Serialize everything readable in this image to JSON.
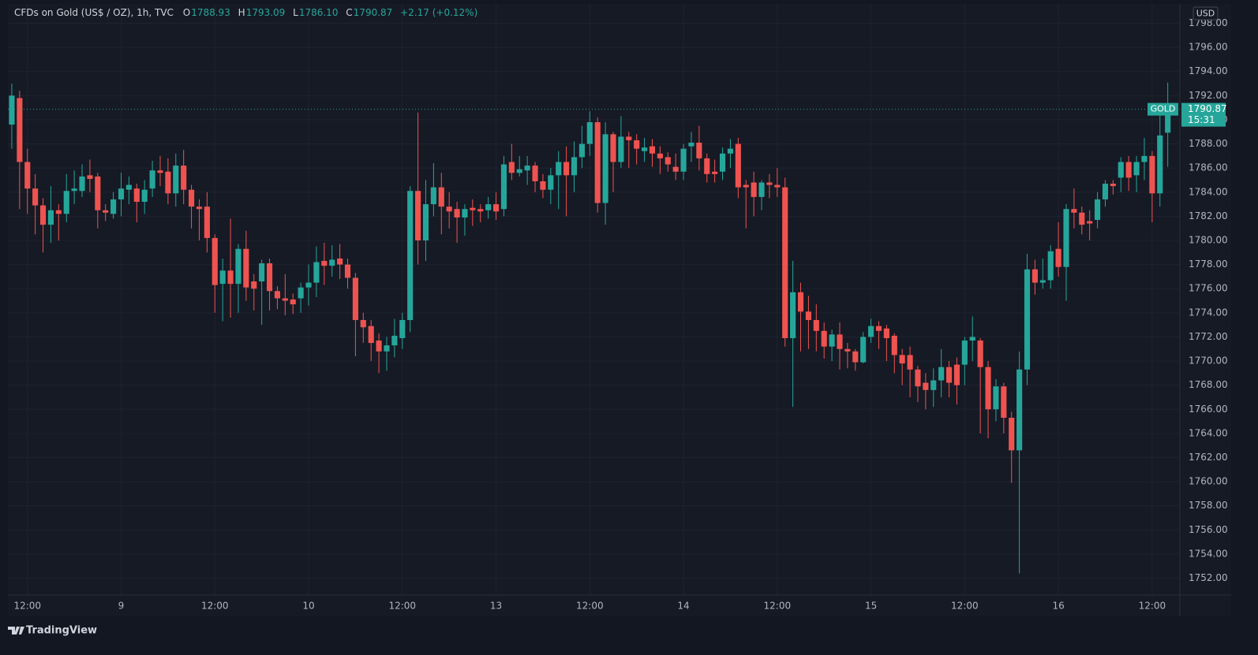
{
  "header": {
    "title": "CFDs on Gold (US$ / OZ), 1h, TVC",
    "ohlc": [
      {
        "key": "O",
        "value": "1788.93"
      },
      {
        "key": "H",
        "value": "1793.09"
      },
      {
        "key": "L",
        "value": "1786.10"
      },
      {
        "key": "C",
        "value": "1790.87"
      }
    ],
    "change": "+2.17 (+0.12%)"
  },
  "footer": {
    "brand": "TradingView"
  },
  "chart_data": {
    "type": "candlestick",
    "symbol": "GOLD",
    "currency": "USD",
    "countdown": "15:31",
    "up_color": "#26a69a",
    "down_color": "#ef5350",
    "grid": true,
    "open": [
      1789.6,
      1791.8,
      1786.5,
      1784.3,
      1782.9,
      1781.3,
      1782.5,
      1782.2,
      1784.1,
      1784.1,
      1785.4,
      1785.3,
      1782.5,
      1782.2,
      1783.4,
      1784.2,
      1784.3,
      1783.2,
      1784.3,
      1785.8,
      1785.7,
      1783.9,
      1786.2,
      1784.2,
      1782.8,
      1782.8,
      1780.2,
      1776.4,
      1777.5,
      1776.4,
      1779.3,
      1776.6,
      1776.6,
      1778.1,
      1775.8,
      1775.2,
      1775.1,
      1775.2,
      1776.1,
      1776.5,
      1778.3,
      1777.9,
      1778.5,
      1778.0,
      1776.9,
      1773.4,
      1772.9,
      1771.7,
      1770.8,
      1771.3,
      1771.9,
      1773.4,
      1784.1,
      1780.0,
      1783.0,
      1784.4,
      1782.8,
      1782.6,
      1781.9,
      1782.7,
      1782.6,
      1782.5,
      1783.0,
      1782.6,
      1786.5,
      1785.6,
      1785.8,
      1786.2,
      1784.9,
      1784.2,
      1785.4,
      1786.5,
      1785.4,
      1786.9,
      1788.0,
      1789.8,
      1783.1,
      1788.8,
      1786.5,
      1788.6,
      1788.3,
      1787.4,
      1787.8,
      1787.2,
      1786.9,
      1786.1,
      1785.7,
      1787.8,
      1788.1,
      1786.8,
      1785.7,
      1785.7,
      1787.2,
      1788.0,
      1784.6,
      1784.8,
      1783.6,
      1784.8,
      1784.6,
      1784.4,
      1771.9,
      1775.7,
      1774.1,
      1773.4,
      1772.5,
      1771.2,
      1772.2,
      1771.0,
      1770.8,
      1769.9,
      1772.0,
      1772.9,
      1772.7,
      1772.1,
      1770.5,
      1770.5,
      1769.3,
      1768.2,
      1767.6,
      1768.4,
      1769.5,
      1769.7,
      1769.7,
      1771.7,
      1771.7,
      1769.5,
      1766.0,
      1767.9,
      1765.3,
      1762.6,
      1769.3,
      1777.6,
      1776.5,
      1776.7,
      1779.3,
      1777.8,
      1782.6,
      1782.3,
      1781.6,
      1781.7,
      1783.4,
      1784.7,
      1785.2,
      1786.5,
      1785.4,
      1786.5,
      1787.0,
      1783.9,
      1788.93
    ],
    "high": [
      1793.0,
      1792.4,
      1787.6,
      1785.5,
      1783.5,
      1784.5,
      1783.0,
      1785.5,
      1785.8,
      1786.3,
      1786.7,
      1785.6,
      1783.0,
      1784.0,
      1785.6,
      1785.3,
      1784.7,
      1785.0,
      1786.6,
      1787.0,
      1786.8,
      1787.2,
      1787.5,
      1784.6,
      1783.4,
      1784.0,
      1780.5,
      1778.5,
      1781.8,
      1779.7,
      1780.8,
      1777.2,
      1778.4,
      1778.5,
      1776.2,
      1777.2,
      1775.6,
      1776.5,
      1778.0,
      1779.5,
      1779.8,
      1779.6,
      1779.7,
      1778.5,
      1777.3,
      1774.0,
      1773.4,
      1772.3,
      1772.0,
      1773.5,
      1774.0,
      1784.5,
      1790.6,
      1785.0,
      1786.4,
      1785.6,
      1784.0,
      1783.2,
      1783.0,
      1783.4,
      1783.0,
      1783.6,
      1784.0,
      1787.0,
      1788.0,
      1787.0,
      1787.0,
      1786.5,
      1785.5,
      1786.0,
      1787.4,
      1787.8,
      1788.2,
      1789.5,
      1790.7,
      1790.2,
      1789.8,
      1789.0,
      1790.3,
      1789.0,
      1788.8,
      1788.5,
      1788.4,
      1787.8,
      1787.3,
      1787.2,
      1788.0,
      1789.0,
      1789.5,
      1787.2,
      1786.7,
      1787.7,
      1788.4,
      1788.5,
      1785.0,
      1785.7,
      1785.0,
      1785.5,
      1786.0,
      1785.2,
      1778.3,
      1776.5,
      1775.4,
      1774.7,
      1773.2,
      1772.6,
      1773.2,
      1771.5,
      1771.0,
      1772.4,
      1773.5,
      1773.3,
      1773.0,
      1772.3,
      1771.0,
      1771.2,
      1769.6,
      1769.0,
      1769.4,
      1771.0,
      1770.0,
      1770.3,
      1772.0,
      1773.7,
      1771.9,
      1770.0,
      1768.5,
      1768.2,
      1765.8,
      1770.8,
      1778.9,
      1778.4,
      1778.5,
      1779.6,
      1781.5,
      1783.0,
      1784.3,
      1782.8,
      1782.5,
      1784.0,
      1785.0,
      1785.0,
      1786.9,
      1787.0,
      1787.0,
      1788.5,
      1787.4,
      1790.4,
      1793.09
    ],
    "low": [
      1787.6,
      1782.6,
      1782.2,
      1780.5,
      1779.0,
      1779.8,
      1780.0,
      1781.5,
      1783.0,
      1783.6,
      1784.0,
      1781.0,
      1781.6,
      1781.8,
      1782.0,
      1783.0,
      1781.5,
      1782.2,
      1783.6,
      1784.5,
      1783.0,
      1782.8,
      1783.0,
      1781.0,
      1780.0,
      1779.0,
      1774.0,
      1773.3,
      1773.6,
      1774.0,
      1775.0,
      1774.2,
      1773.0,
      1774.2,
      1774.3,
      1773.8,
      1773.9,
      1774.0,
      1774.6,
      1775.3,
      1776.3,
      1777.0,
      1776.8,
      1776.0,
      1770.4,
      1771.5,
      1770.0,
      1769.0,
      1769.2,
      1770.3,
      1771.0,
      1772.4,
      1778.0,
      1778.3,
      1782.0,
      1780.5,
      1781.0,
      1779.8,
      1780.4,
      1781.2,
      1781.5,
      1781.8,
      1781.7,
      1782.0,
      1785.0,
      1785.3,
      1784.6,
      1784.0,
      1783.5,
      1783.0,
      1782.6,
      1782.0,
      1784.0,
      1786.0,
      1787.0,
      1782.3,
      1781.3,
      1784.0,
      1786.0,
      1786.0,
      1786.3,
      1786.5,
      1786.1,
      1785.5,
      1785.7,
      1785.0,
      1785.0,
      1786.5,
      1785.8,
      1784.8,
      1784.8,
      1785.0,
      1786.0,
      1783.5,
      1781.0,
      1782.0,
      1782.5,
      1783.5,
      1783.6,
      1771.2,
      1766.2,
      1770.8,
      1771.0,
      1770.8,
      1770.2,
      1770.0,
      1769.3,
      1769.4,
      1769.2,
      1769.8,
      1771.5,
      1771.0,
      1770.0,
      1769.0,
      1768.0,
      1767.0,
      1766.6,
      1766.0,
      1766.2,
      1767.0,
      1767.0,
      1766.4,
      1768.0,
      1770.0,
      1764.0,
      1763.6,
      1765.0,
      1764.0,
      1759.9,
      1752.4,
      1768.0,
      1775.5,
      1776.0,
      1776.0,
      1777.0,
      1775.0,
      1781.0,
      1780.5,
      1780.0,
      1781.0,
      1782.8,
      1783.8,
      1784.0,
      1784.1,
      1784.0,
      1785.0,
      1781.5,
      1782.8,
      1786.1
    ],
    "close": [
      1792.0,
      1786.5,
      1784.3,
      1782.9,
      1781.3,
      1782.5,
      1782.2,
      1784.1,
      1784.3,
      1785.3,
      1785.1,
      1782.5,
      1782.3,
      1783.4,
      1784.3,
      1784.6,
      1783.2,
      1784.2,
      1785.8,
      1785.6,
      1783.9,
      1786.2,
      1784.2,
      1782.8,
      1782.6,
      1780.2,
      1776.3,
      1777.5,
      1776.4,
      1779.3,
      1776.1,
      1776.0,
      1778.1,
      1775.8,
      1775.2,
      1775.0,
      1774.7,
      1776.1,
      1776.5,
      1778.2,
      1777.9,
      1778.4,
      1778.0,
      1776.9,
      1773.4,
      1772.8,
      1771.5,
      1770.8,
      1771.3,
      1772.1,
      1773.4,
      1784.1,
      1780.0,
      1783.0,
      1784.4,
      1782.8,
      1782.4,
      1781.9,
      1782.6,
      1782.5,
      1782.4,
      1783.0,
      1782.4,
      1786.3,
      1785.6,
      1785.9,
      1786.2,
      1784.9,
      1784.2,
      1785.4,
      1786.5,
      1785.4,
      1786.9,
      1788.0,
      1789.8,
      1783.1,
      1788.8,
      1786.5,
      1788.6,
      1788.3,
      1787.6,
      1787.7,
      1787.2,
      1786.8,
      1786.3,
      1785.7,
      1787.6,
      1788.1,
      1786.8,
      1785.5,
      1785.5,
      1787.2,
      1787.6,
      1784.4,
      1784.4,
      1783.6,
      1784.8,
      1784.6,
      1784.4,
      1771.9,
      1775.7,
      1774.1,
      1773.4,
      1772.5,
      1771.2,
      1772.2,
      1771.0,
      1770.8,
      1769.9,
      1772.0,
      1772.9,
      1772.5,
      1771.9,
      1770.5,
      1769.8,
      1769.3,
      1767.9,
      1767.6,
      1768.4,
      1769.5,
      1768.2,
      1768.0,
      1771.7,
      1772.0,
      1769.5,
      1766.0,
      1767.9,
      1765.3,
      1762.6,
      1769.3,
      1777.6,
      1776.5,
      1776.7,
      1779.1,
      1777.8,
      1782.6,
      1782.3,
      1781.3,
      1781.4,
      1783.4,
      1784.7,
      1784.5,
      1786.5,
      1785.2,
      1786.5,
      1787.0,
      1783.9,
      1788.7,
      1790.87
    ],
    "xlim": [
      -0.5,
      149.55
    ],
    "xticks": [
      {
        "value": 2,
        "label": "12:00"
      },
      {
        "value": 14,
        "label": "9"
      },
      {
        "value": 26,
        "label": "12:00"
      },
      {
        "value": 38,
        "label": "10"
      },
      {
        "value": 50,
        "label": "12:00"
      },
      {
        "value": 62,
        "label": "13"
      },
      {
        "value": 74,
        "label": "12:00"
      },
      {
        "value": 86,
        "label": "14"
      },
      {
        "value": 98,
        "label": "12:00"
      },
      {
        "value": 110,
        "label": "15"
      },
      {
        "value": 122,
        "label": "12:00"
      },
      {
        "value": 134,
        "label": "16"
      },
      {
        "value": 146,
        "label": "12:00"
      }
    ],
    "ylim": [
      1750.6,
      1799.6
    ],
    "yticks": [
      {
        "value": 1752,
        "label": "1752.00"
      },
      {
        "value": 1754,
        "label": "1754.00"
      },
      {
        "value": 1756,
        "label": "1756.00"
      },
      {
        "value": 1758,
        "label": "1758.00"
      },
      {
        "value": 1760,
        "label": "1760.00"
      },
      {
        "value": 1762,
        "label": "1762.00"
      },
      {
        "value": 1764,
        "label": "1764.00"
      },
      {
        "value": 1766,
        "label": "1766.00"
      },
      {
        "value": 1768,
        "label": "1768.00"
      },
      {
        "value": 1770,
        "label": "1770.00"
      },
      {
        "value": 1772,
        "label": "1772.00"
      },
      {
        "value": 1774,
        "label": "1774.00"
      },
      {
        "value": 1776,
        "label": "1776.00"
      },
      {
        "value": 1778,
        "label": "1778.00"
      },
      {
        "value": 1780,
        "label": "1780.00"
      },
      {
        "value": 1782,
        "label": "1782.00"
      },
      {
        "value": 1784,
        "label": "1784.00"
      },
      {
        "value": 1786,
        "label": "1786.00"
      },
      {
        "value": 1788,
        "label": "1788.00"
      },
      {
        "value": 1790,
        "label": "1790.00"
      },
      {
        "value": 1792,
        "label": "1792.00"
      },
      {
        "value": 1794,
        "label": "1794.00"
      },
      {
        "value": 1796,
        "label": "1796.00"
      },
      {
        "value": 1798,
        "label": "1798.00"
      }
    ]
  }
}
